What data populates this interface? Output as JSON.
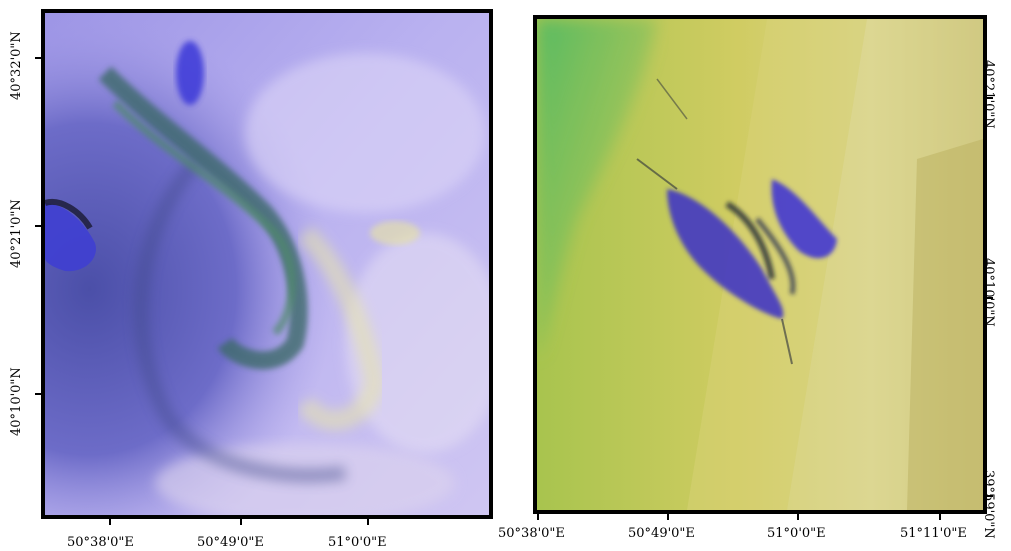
{
  "left_map": {
    "x_ticks": [
      "50°38'0\"E",
      "50°49'0\"E",
      "51°0'0\"E"
    ],
    "y_ticks": [
      "40°32'0\"N",
      "40°21'0\"N",
      "40°10'0\"N"
    ]
  },
  "right_map": {
    "x_ticks": [
      "50°38'0\"E",
      "50°49'0\"E",
      "51°0'0\"E",
      "51°11'0\"E"
    ],
    "y_ticks": [
      "40°21'0\"N",
      "40°10'0\"N",
      "39°59'0\"N"
    ]
  },
  "colors": {
    "left_water": "#a79ff0",
    "left_deep": "#5b62b8",
    "right_base": "#c9c85e",
    "right_green": "#5fb86a",
    "slick_blue": "#3b2fd6"
  }
}
